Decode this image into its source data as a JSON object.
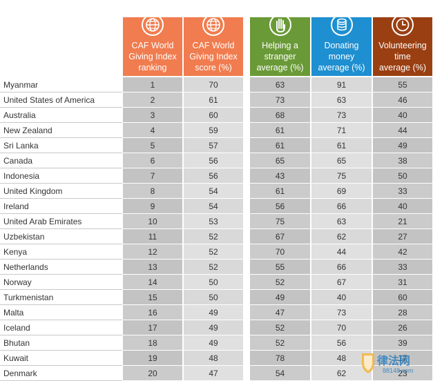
{
  "headers": [
    {
      "label": "CAF World\nGiving Index\nranking",
      "color": "#f07c4f",
      "icon": "globe-icon"
    },
    {
      "label": "CAF World\nGiving Index\nscore (%)",
      "color": "#f07c4f",
      "icon": "globe-icon"
    },
    {
      "label": "Helping a\nstranger\naverage (%)",
      "color": "#6a9a37",
      "icon": "hand-icon"
    },
    {
      "label": "Donating\nmoney\naverage (%)",
      "color": "#1e8fd0",
      "icon": "coins-icon"
    },
    {
      "label": "Volunteering\ntime\naverage (%)",
      "color": "#9a3f12",
      "icon": "clock-icon"
    }
  ],
  "rows": [
    {
      "country": "Myanmar",
      "rank": "1",
      "score": "70",
      "helping": "63",
      "donating": "91",
      "volunteering": "55"
    },
    {
      "country": "United States of America",
      "rank": "2",
      "score": "61",
      "helping": "73",
      "donating": "63",
      "volunteering": "46"
    },
    {
      "country": "Australia",
      "rank": "3",
      "score": "60",
      "helping": "68",
      "donating": "73",
      "volunteering": "40"
    },
    {
      "country": "New Zealand",
      "rank": "4",
      "score": "59",
      "helping": "61",
      "donating": "71",
      "volunteering": "44"
    },
    {
      "country": "Sri Lanka",
      "rank": "5",
      "score": "57",
      "helping": "61",
      "donating": "61",
      "volunteering": "49"
    },
    {
      "country": "Canada",
      "rank": "6",
      "score": "56",
      "helping": "65",
      "donating": "65",
      "volunteering": "38"
    },
    {
      "country": "Indonesia",
      "rank": "7",
      "score": "56",
      "helping": "43",
      "donating": "75",
      "volunteering": "50"
    },
    {
      "country": "United Kingdom",
      "rank": "8",
      "score": "54",
      "helping": "61",
      "donating": "69",
      "volunteering": "33"
    },
    {
      "country": "Ireland",
      "rank": "9",
      "score": "54",
      "helping": "56",
      "donating": "66",
      "volunteering": "40"
    },
    {
      "country": "United Arab Emirates",
      "rank": "10",
      "score": "53",
      "helping": "75",
      "donating": "63",
      "volunteering": "21"
    },
    {
      "country": "Uzbekistan",
      "rank": "11",
      "score": "52",
      "helping": "67",
      "donating": "62",
      "volunteering": "27"
    },
    {
      "country": "Kenya",
      "rank": "12",
      "score": "52",
      "helping": "70",
      "donating": "44",
      "volunteering": "42"
    },
    {
      "country": "Netherlands",
      "rank": "13",
      "score": "52",
      "helping": "55",
      "donating": "66",
      "volunteering": "33"
    },
    {
      "country": "Norway",
      "rank": "14",
      "score": "50",
      "helping": "52",
      "donating": "67",
      "volunteering": "31"
    },
    {
      "country": "Turkmenistan",
      "rank": "15",
      "score": "50",
      "helping": "49",
      "donating": "40",
      "volunteering": "60"
    },
    {
      "country": "Malta",
      "rank": "16",
      "score": "49",
      "helping": "47",
      "donating": "73",
      "volunteering": "28"
    },
    {
      "country": "Iceland",
      "rank": "17",
      "score": "49",
      "helping": "52",
      "donating": "70",
      "volunteering": "26"
    },
    {
      "country": "Bhutan",
      "rank": "18",
      "score": "49",
      "helping": "52",
      "donating": "56",
      "volunteering": "39"
    },
    {
      "country": "Kuwait",
      "rank": "19",
      "score": "48",
      "helping": "78",
      "donating": "48",
      "volunteering": "17"
    },
    {
      "country": "Denmark",
      "rank": "20",
      "score": "47",
      "helping": "54",
      "donating": "62",
      "volunteering": "23"
    }
  ],
  "watermark": {
    "text": "律法网",
    "sub": "88148.com"
  }
}
